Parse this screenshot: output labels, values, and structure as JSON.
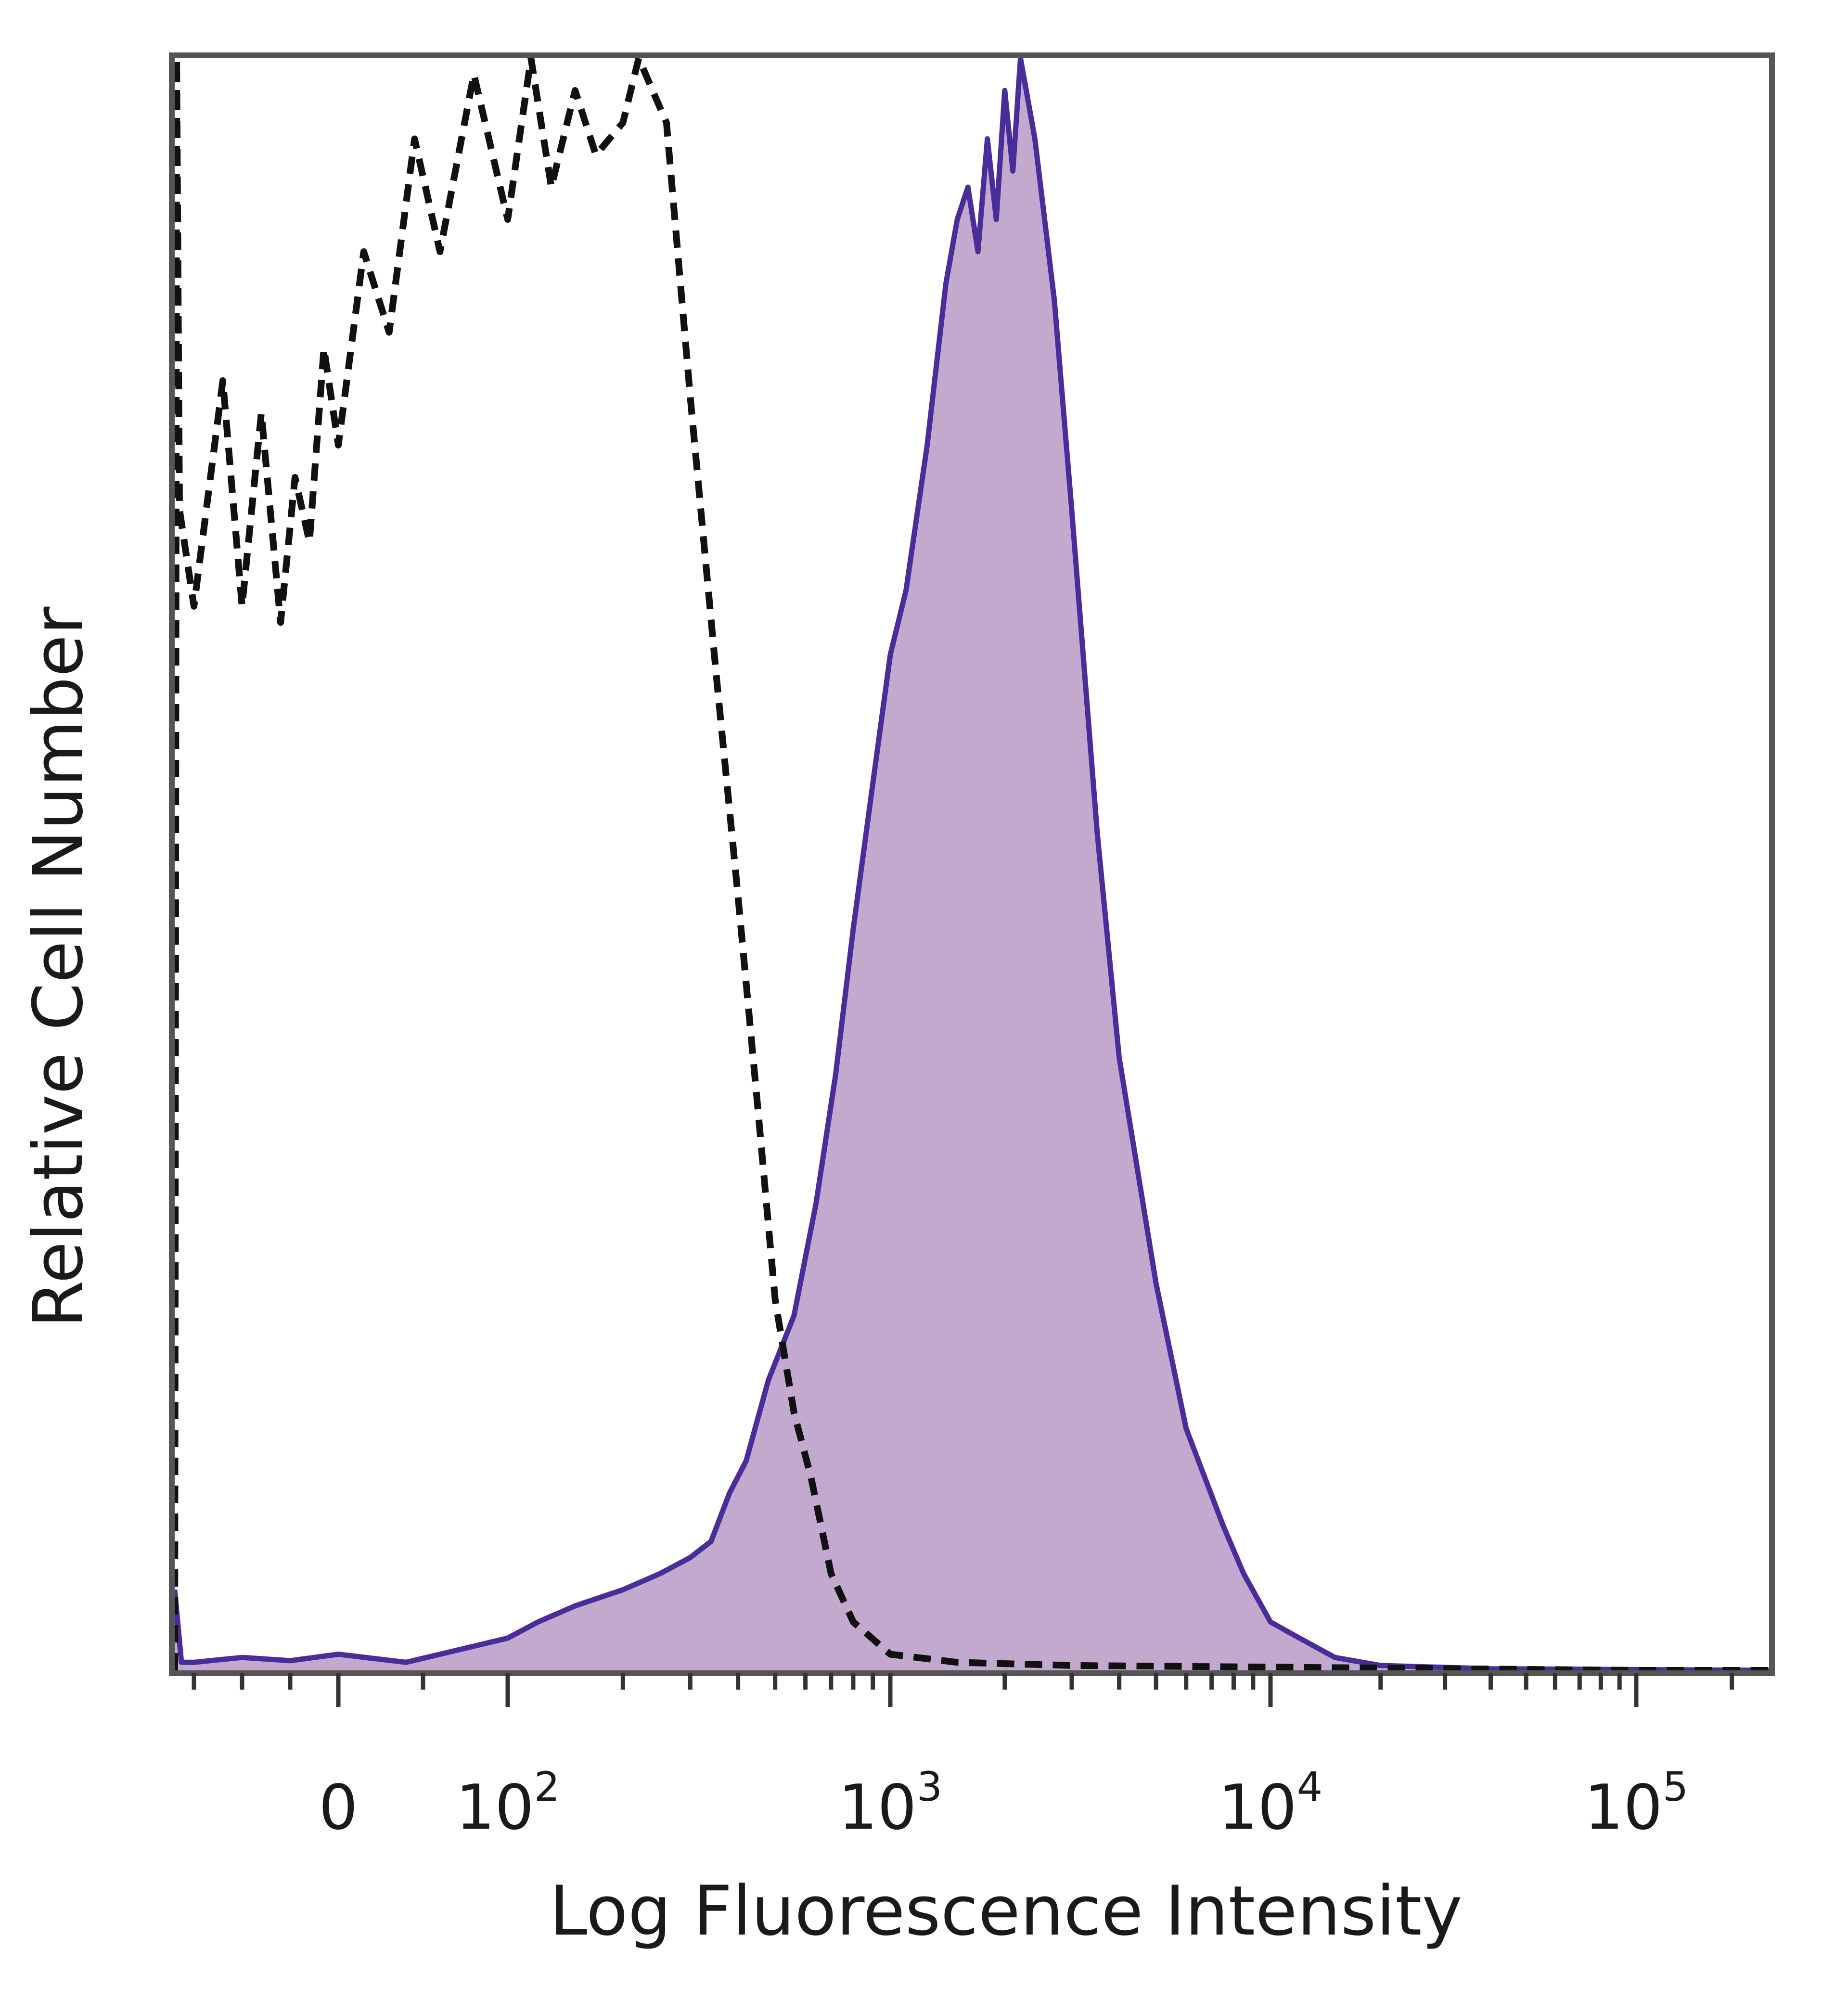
{
  "chart_data": {
    "type": "area",
    "title": "",
    "xlabel": "Log Fluorescence Intensity",
    "ylabel": "Relative Cell Number",
    "x_scale": "biexponential (log above 10^2)",
    "x_ticks": [
      {
        "value": 0,
        "base": "0",
        "exp": ""
      },
      {
        "value": 100,
        "base": "10",
        "exp": "2"
      },
      {
        "value": 1000,
        "base": "10",
        "exp": "3"
      },
      {
        "value": 10000,
        "base": "10",
        "exp": "4"
      },
      {
        "value": 100000,
        "base": "10",
        "exp": "5"
      }
    ],
    "xlim": [
      -170,
      262000
    ],
    "ylim": [
      0,
      100
    ],
    "grid": false,
    "legend": "none",
    "series": [
      {
        "style": "dashed",
        "color": "#111111",
        "fill": "none",
        "points": [
          [
            -170,
            0
          ],
          [
            -168,
            100
          ],
          [
            -165,
            72
          ],
          [
            -150,
            66
          ],
          [
            -120,
            80
          ],
          [
            -100,
            66
          ],
          [
            -80,
            78
          ],
          [
            -60,
            65
          ],
          [
            -45,
            74
          ],
          [
            -30,
            70
          ],
          [
            -15,
            82
          ],
          [
            0,
            76
          ],
          [
            15,
            88
          ],
          [
            30,
            83
          ],
          [
            45,
            95
          ],
          [
            60,
            88
          ],
          [
            80,
            99
          ],
          [
            100,
            90
          ],
          [
            115,
            100
          ],
          [
            130,
            92
          ],
          [
            150,
            98
          ],
          [
            170,
            94
          ],
          [
            200,
            96
          ],
          [
            220,
            100
          ],
          [
            260,
            96
          ],
          [
            300,
            79
          ],
          [
            350,
            62
          ],
          [
            400,
            48
          ],
          [
            450,
            35
          ],
          [
            500,
            23
          ],
          [
            560,
            16
          ],
          [
            620,
            12
          ],
          [
            700,
            6
          ],
          [
            800,
            3
          ],
          [
            1000,
            1
          ],
          [
            1500,
            0.5
          ],
          [
            3000,
            0.3
          ],
          [
            10000,
            0.2
          ],
          [
            100000,
            0
          ],
          [
            262000,
            0
          ]
        ]
      },
      {
        "style": "solid",
        "color": "#4a2d9a",
        "fill": "#c4a9cf",
        "points": [
          [
            -170,
            5
          ],
          [
            -163,
            0.5
          ],
          [
            -150,
            0.5
          ],
          [
            -100,
            0.8
          ],
          [
            -50,
            0.6
          ],
          [
            0,
            1
          ],
          [
            40,
            0.5
          ],
          [
            80,
            1.5
          ],
          [
            100,
            2
          ],
          [
            120,
            3
          ],
          [
            150,
            4
          ],
          [
            200,
            5
          ],
          [
            250,
            6
          ],
          [
            300,
            7
          ],
          [
            340,
            8
          ],
          [
            380,
            11
          ],
          [
            420,
            13
          ],
          [
            480,
            18
          ],
          [
            560,
            22
          ],
          [
            640,
            29
          ],
          [
            720,
            37
          ],
          [
            800,
            46
          ],
          [
            900,
            55
          ],
          [
            1000,
            63
          ],
          [
            1100,
            67
          ],
          [
            1250,
            76
          ],
          [
            1400,
            86
          ],
          [
            1500,
            90
          ],
          [
            1600,
            92
          ],
          [
            1700,
            88
          ],
          [
            1800,
            95
          ],
          [
            1900,
            90
          ],
          [
            2000,
            98
          ],
          [
            2100,
            93
          ],
          [
            2200,
            100
          ],
          [
            2400,
            95
          ],
          [
            2700,
            85
          ],
          [
            3000,
            72
          ],
          [
            3500,
            52
          ],
          [
            4000,
            38
          ],
          [
            5000,
            24
          ],
          [
            6000,
            15
          ],
          [
            7500,
            9
          ],
          [
            8500,
            6
          ],
          [
            10000,
            3
          ],
          [
            12000,
            2
          ],
          [
            15000,
            0.8
          ],
          [
            20000,
            0.3
          ],
          [
            40000,
            0.1
          ],
          [
            262000,
            0
          ]
        ]
      }
    ]
  }
}
